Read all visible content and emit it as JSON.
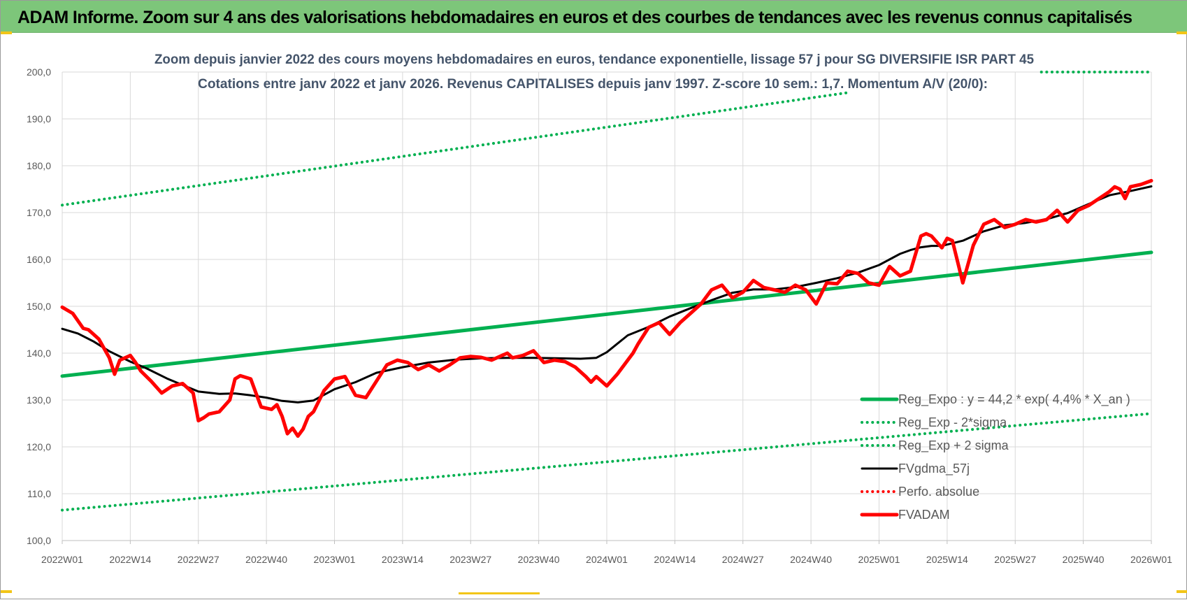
{
  "banner": {
    "title": "ADAM Informe. Zoom sur 4 ans des valorisations hebdomadaires en euros et des courbes de tendances avec les revenus connus capitalisés"
  },
  "colors": {
    "banner_bg": "#7dc67a",
    "reg_expo": "#00b050",
    "fvgdma": "#000000",
    "fvadam": "#ff0000",
    "perfo": "#ff0000",
    "grid": "#d9d9d9",
    "axis_text": "#595959",
    "title_text": "#44546a"
  },
  "chart_data": {
    "type": "line",
    "title": "Zoom depuis janvier 2022 des cours moyens hebdomadaires en euros, tendance exponentielle, lissage 57 j pour SG DIVERSIFIE ISR PART 45",
    "subtitle": "Cotations entre janv 2022 et janv 2026. Revenus CAPITALISES depuis janv 1997. Z-score 10 sem.: 1,7. Momentum A/V (20/0):",
    "xlabel": "",
    "ylabel": "",
    "ylim": [
      100,
      200
    ],
    "yticks": [
      "100,0",
      "110,0",
      "120,0",
      "130,0",
      "140,0",
      "150,0",
      "160,0",
      "170,0",
      "180,0",
      "190,0",
      "200,0"
    ],
    "xticks": [
      "2022W01",
      "2022W14",
      "2022W27",
      "2022W40",
      "2023W01",
      "2023W14",
      "2023W27",
      "2023W40",
      "2024W01",
      "2024W14",
      "2024W27",
      "2024W40",
      "2025W01",
      "2025W14",
      "2025W27",
      "2025W40",
      "2026W01"
    ],
    "x_range_weeks": [
      0,
      208
    ],
    "grid": true,
    "legend_position": "bottom-right",
    "series": [
      {
        "name": "Reg_Expo : y = 44,2 * exp( 4,4% *  X_an )",
        "style": "solid-thick",
        "color": "#00b050",
        "x_weeks": [
          0,
          208
        ],
        "values": [
          135.1,
          161.5
        ]
      },
      {
        "name": "Reg_Exp - 2*sigma",
        "style": "dotted",
        "color": "#00b050",
        "x_weeks": [
          0,
          208
        ],
        "values": [
          106.5,
          127.1
        ]
      },
      {
        "name": "Reg_Exp + 2 sigma",
        "style": "dotted",
        "color": "#00b050",
        "x_weeks": [
          0,
          150
        ],
        "values": [
          171.6,
          195.6
        ],
        "x_weeks_extra": [
          187,
          208
        ],
        "values_extra": [
          200,
          200
        ]
      },
      {
        "name": "FVgdma_57j",
        "style": "solid",
        "color": "#000000",
        "x_weeks": [
          0,
          3,
          6,
          9,
          13,
          16,
          20,
          23,
          26,
          30,
          33,
          36,
          39,
          42,
          45,
          48,
          52,
          56,
          60,
          65,
          70,
          75,
          80,
          85,
          90,
          95,
          99,
          102,
          104,
          106,
          108,
          112,
          116,
          120,
          124,
          128,
          132,
          136,
          140,
          144,
          148,
          152,
          156,
          158,
          160,
          162,
          164,
          166,
          168,
          172,
          176,
          180,
          184,
          188,
          192,
          196,
          200,
          204,
          208
        ],
        "values": [
          145.2,
          144.2,
          142.5,
          140.4,
          138.2,
          136.8,
          134.6,
          133.2,
          131.8,
          131.3,
          131.4,
          131.0,
          130.5,
          129.8,
          129.5,
          129.9,
          132.3,
          133.8,
          135.8,
          137.0,
          138.0,
          138.6,
          138.9,
          139.0,
          139.0,
          138.9,
          138.8,
          139.0,
          140.2,
          142.0,
          143.8,
          145.6,
          147.8,
          149.6,
          151.3,
          152.9,
          153.6,
          153.6,
          154.1,
          155.0,
          156.0,
          157.2,
          158.8,
          160.0,
          161.2,
          162.0,
          162.6,
          162.9,
          162.9,
          164.0,
          166.0,
          167.3,
          167.8,
          168.6,
          169.9,
          171.8,
          173.7,
          174.6,
          175.6
        ]
      },
      {
        "name": "Perfo. absolue",
        "style": "dotted",
        "color": "#ff0000",
        "x_weeks": [],
        "values": []
      },
      {
        "name": "FVADAM",
        "style": "solid-thick",
        "color": "#ff0000",
        "x_weeks": [
          0,
          2,
          4,
          5,
          7,
          9,
          10,
          11,
          12,
          13,
          14,
          15,
          17,
          19,
          21,
          23,
          25,
          26,
          27,
          28,
          30,
          32,
          33,
          34,
          36,
          37,
          38,
          40,
          41,
          42,
          43,
          44,
          45,
          46,
          47,
          48,
          50,
          52,
          54,
          56,
          58,
          60,
          62,
          64,
          66,
          68,
          70,
          72,
          74,
          76,
          78,
          80,
          82,
          84,
          85,
          86,
          88,
          90,
          92,
          94,
          96,
          98,
          100,
          101,
          102,
          104,
          106,
          108,
          109,
          110,
          112,
          114,
          116,
          118,
          120,
          122,
          124,
          126,
          128,
          130,
          132,
          134,
          136,
          138,
          140,
          142,
          144,
          146,
          148,
          150,
          152,
          154,
          156,
          158,
          160,
          162,
          164,
          165,
          166,
          168,
          169,
          170,
          171,
          172,
          174,
          176,
          178,
          180,
          182,
          184,
          186,
          188,
          190,
          192,
          194,
          196,
          198,
          200,
          201,
          202,
          203,
          204,
          206,
          208
        ],
        "values": [
          149.8,
          148.5,
          145.3,
          145.0,
          143.0,
          139.0,
          135.5,
          138.5,
          139.0,
          139.5,
          138.0,
          136.2,
          134.0,
          131.5,
          133.0,
          133.5,
          131.5,
          125.6,
          126.2,
          127.0,
          127.5,
          130.0,
          134.5,
          135.2,
          134.5,
          131.5,
          128.5,
          128.0,
          129.0,
          126.5,
          122.8,
          124.0,
          122.3,
          123.8,
          126.5,
          127.5,
          132.0,
          134.5,
          135.0,
          131.0,
          130.5,
          134.0,
          137.5,
          138.5,
          138.0,
          136.5,
          137.5,
          136.2,
          137.5,
          139.0,
          139.3,
          139.1,
          138.5,
          139.5,
          140.0,
          139.0,
          139.5,
          140.5,
          138.0,
          138.5,
          138.2,
          137.0,
          135.0,
          133.8,
          135.0,
          133.0,
          135.5,
          138.5,
          140.0,
          142.0,
          145.5,
          146.5,
          144.0,
          146.5,
          148.5,
          150.5,
          153.5,
          154.5,
          151.8,
          153.0,
          155.5,
          154.0,
          153.5,
          153.0,
          154.5,
          153.5,
          150.5,
          155.0,
          154.8,
          157.5,
          157.0,
          155.0,
          154.5,
          158.5,
          156.5,
          157.5,
          165.0,
          165.5,
          165.0,
          162.5,
          164.5,
          164.0,
          159.5,
          155.0,
          163.0,
          167.5,
          168.5,
          166.8,
          167.5,
          168.5,
          168.0,
          168.5,
          170.5,
          168.0,
          170.5,
          171.5,
          173.0,
          174.5,
          175.5,
          175.0,
          173.0,
          175.5,
          176.0,
          176.8
        ]
      }
    ]
  }
}
